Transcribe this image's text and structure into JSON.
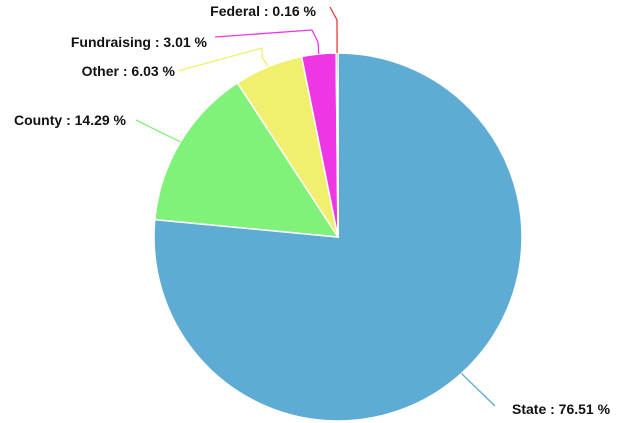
{
  "chart_data": {
    "type": "pie",
    "start_angle": "12 o'clock",
    "direction": "clockwise",
    "slices": [
      {
        "name": "State",
        "value": 76.51,
        "label": "State : 76.51 %",
        "color": "#5eacd3"
      },
      {
        "name": "County",
        "value": 14.29,
        "label": "County : 14.29 %",
        "color": "#80f27a"
      },
      {
        "name": "Other",
        "value": 6.03,
        "label": "Other : 6.03 %",
        "color": "#f0f06e"
      },
      {
        "name": "Fundraising",
        "value": 3.01,
        "label": "Fundraising : 3.01 %",
        "color": "#ef36e4"
      },
      {
        "name": "Federal",
        "value": 0.16,
        "label": "Federal : 0.16 %",
        "color": "#e53935"
      }
    ]
  }
}
